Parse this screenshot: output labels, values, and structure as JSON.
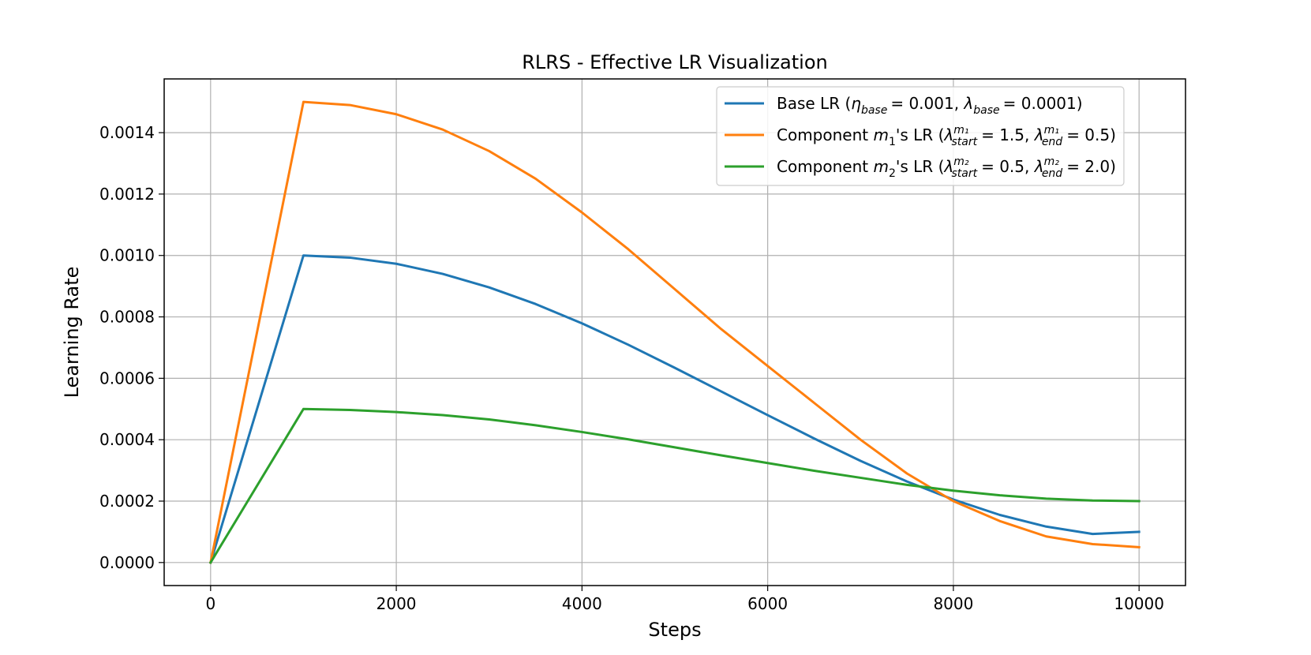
{
  "chart_data": {
    "type": "line",
    "title": "RLRS - Effective LR Visualization",
    "xlabel": "Steps",
    "ylabel": "Learning Rate",
    "xlim": [
      -500,
      10500
    ],
    "ylim": [
      -7.5e-05,
      0.001575
    ],
    "xticks": [
      0,
      2000,
      4000,
      6000,
      8000,
      10000
    ],
    "xtick_labels": [
      "0",
      "2000",
      "4000",
      "6000",
      "8000",
      "10000"
    ],
    "yticks": [
      0,
      0.0002,
      0.0004,
      0.0006,
      0.0008,
      0.001,
      0.0012,
      0.0014
    ],
    "ytick_labels": [
      "0.0000",
      "0.0002",
      "0.0004",
      "0.0006",
      "0.0008",
      "0.0010",
      "0.0012",
      "0.0014"
    ],
    "grid": true,
    "legend_position": "top-right",
    "warmup_steps": 1000,
    "total_steps": 10000,
    "series": [
      {
        "name": "Base LR",
        "color": "#1f77b4",
        "legend": {
          "prefix": "Base LR (",
          "sym1": "η",
          "sym1_sub": "base",
          "sym1_sup": "",
          "val1": "= 0.001",
          "sep": ", ",
          "sym2": "λ",
          "sym2_sub": "base",
          "sym2_sup": "",
          "val2": "= 0.0001",
          "suffix": ")"
        },
        "x": [
          0,
          1000,
          1500,
          2000,
          2500,
          3000,
          3500,
          4000,
          4500,
          5000,
          5500,
          6000,
          6500,
          7000,
          7500,
          8000,
          8500,
          9000,
          9500,
          10000
        ],
        "values": [
          0,
          0.001,
          0.000993,
          0.000973,
          0.00094,
          0.000896,
          0.000842,
          0.000779,
          0.000709,
          0.000634,
          0.000557,
          0.00048,
          0.000404,
          0.000331,
          0.000264,
          0.000205,
          0.000155,
          0.000117,
          9.3e-05,
          0.0001
        ]
      },
      {
        "name": "Component m1's LR",
        "color": "#ff7f0e",
        "legend": {
          "prefix": "Component ",
          "mvar": "m",
          "mvar_sub": "1",
          "mid": "'s LR (",
          "sym1": "λ",
          "sym1_sub": "start",
          "sym1_sup": "m₁",
          "val1": "= 1.5",
          "sep": ", ",
          "sym2": "λ",
          "sym2_sub": "end",
          "sym2_sup": "m₁",
          "val2": "= 0.5",
          "suffix": ")"
        },
        "x": [
          0,
          1000,
          1500,
          2000,
          2500,
          3000,
          3500,
          4000,
          4500,
          5000,
          5500,
          6000,
          6500,
          7000,
          7500,
          8000,
          8500,
          9000,
          9500,
          10000
        ],
        "values": [
          0,
          0.0015,
          0.00149,
          0.00146,
          0.00141,
          0.00134,
          0.00125,
          0.00114,
          0.00102,
          0.00089,
          0.00076,
          0.00064,
          0.00052,
          0.0004,
          0.00029,
          0.0002,
          0.000135,
          8.5e-05,
          6e-05,
          5e-05
        ]
      },
      {
        "name": "Component m2's LR",
        "color": "#2ca02c",
        "legend": {
          "prefix": "Component ",
          "mvar": "m",
          "mvar_sub": "2",
          "mid": "'s LR (",
          "sym1": "λ",
          "sym1_sub": "start",
          "sym1_sup": "m₂",
          "val1": "= 0.5",
          "sep": ", ",
          "sym2": "λ",
          "sym2_sub": "end",
          "sym2_sup": "m₂",
          "val2": "= 2.0",
          "suffix": ")"
        },
        "x": [
          0,
          1000,
          1500,
          2000,
          2500,
          3000,
          3500,
          4000,
          4500,
          5000,
          5500,
          6000,
          6500,
          7000,
          7500,
          8000,
          8500,
          9000,
          9500,
          10000
        ],
        "values": [
          0,
          0.0005,
          0.000497,
          0.00049,
          0.00048,
          0.000466,
          0.000447,
          0.000425,
          0.000401,
          0.000375,
          0.000349,
          0.000324,
          0.000299,
          0.000276,
          0.000253,
          0.000234,
          0.000219,
          0.000208,
          0.000202,
          0.0002
        ]
      }
    ]
  }
}
